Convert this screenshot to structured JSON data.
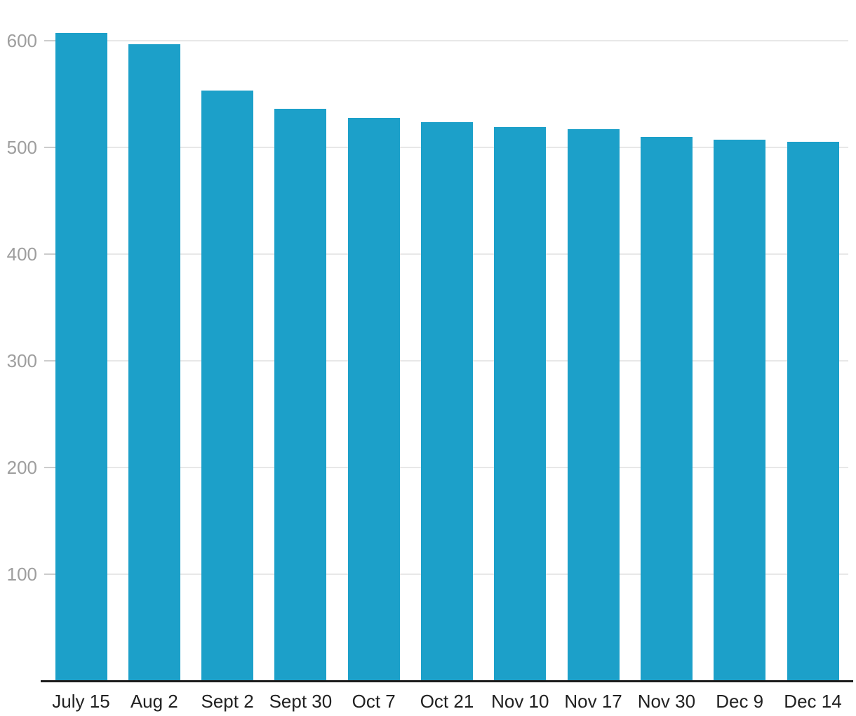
{
  "chart_data": {
    "type": "bar",
    "categories": [
      "July 15",
      "Aug 2",
      "Sept 2",
      "Sept 30",
      "Oct 7",
      "Oct 21",
      "Nov 10",
      "Nov 17",
      "Nov 30",
      "Dec 9",
      "Dec 14"
    ],
    "values": [
      607,
      597,
      553,
      536,
      528,
      524,
      519,
      517,
      510,
      507,
      505
    ],
    "title": "",
    "xlabel": "",
    "ylabel": "",
    "ylim": [
      0,
      638
    ],
    "yticks": [
      100,
      200,
      300,
      400,
      500,
      600
    ],
    "ytick_labels": [
      "100",
      "200",
      "300",
      "400",
      "500",
      "600"
    ],
    "grid": true,
    "legend": false,
    "colors": {
      "bar": "#1ca0c9",
      "gridline": "#e8e8e8",
      "y_tick": "#cccccc",
      "axis_line": "#1c1c1c",
      "x_label": "#212121",
      "y_label": "#9e9e9e",
      "background": "#ffffff"
    }
  }
}
